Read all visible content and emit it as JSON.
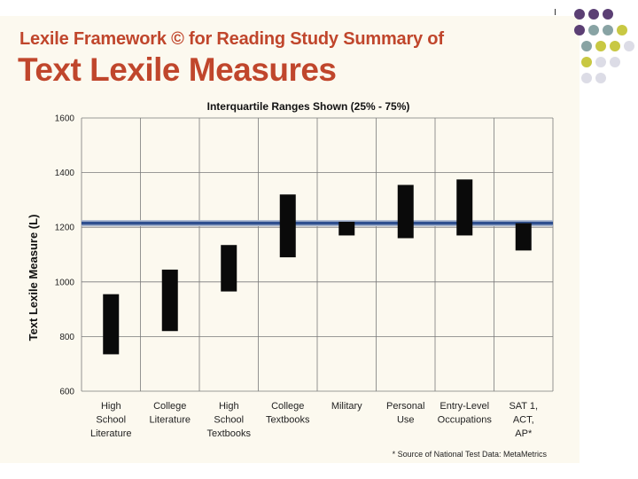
{
  "slide": {
    "title_line1": "Lexile Framework © for Reading Study Summary of",
    "title_line2": "Text Lexile Measures"
  },
  "decor": {
    "dot_rows": [
      [
        "#5b3f74",
        "#5b3f74",
        "#5b3f74"
      ],
      [
        "#5b3f74",
        "#88a3a4",
        "#88a3a4",
        "#c8c843"
      ],
      [
        "#88a3a4",
        "#c8c843",
        "#c8c843",
        "#dcdce6"
      ],
      [
        "#c8c843",
        "#dcdce6",
        "#dcdce6"
      ],
      [
        "#dcdce6",
        "#dcdce6"
      ]
    ]
  },
  "chart_data": {
    "type": "floating-bar",
    "title": "Interquartile Ranges Shown (25% - 75%)",
    "ylabel": "Text Lexile Measure (L)",
    "ylim": [
      600,
      1600
    ],
    "yticks": [
      600,
      800,
      1000,
      1200,
      1400,
      1600
    ],
    "grid": true,
    "categories": [
      [
        "High",
        "School",
        "Literature"
      ],
      [
        "College",
        "Literature"
      ],
      [
        "High",
        "School",
        "Textbooks"
      ],
      [
        "College",
        "Textbooks"
      ],
      [
        "Military"
      ],
      [
        "Personal",
        "Use"
      ],
      [
        "Entry-Level",
        "Occupations"
      ],
      [
        "SAT 1,",
        "ACT,",
        "AP*"
      ]
    ],
    "ranges": [
      [
        735,
        955
      ],
      [
        820,
        1045
      ],
      [
        965,
        1135
      ],
      [
        1090,
        1320
      ],
      [
        1170,
        1220
      ],
      [
        1160,
        1355
      ],
      [
        1170,
        1375
      ],
      [
        1115,
        1215
      ]
    ],
    "reference_line": 1215,
    "bar_color": "#0a0a0a",
    "reference_color": "#2f4f8f",
    "source_note": "* Source of National Test Data: MetaMetrics"
  }
}
